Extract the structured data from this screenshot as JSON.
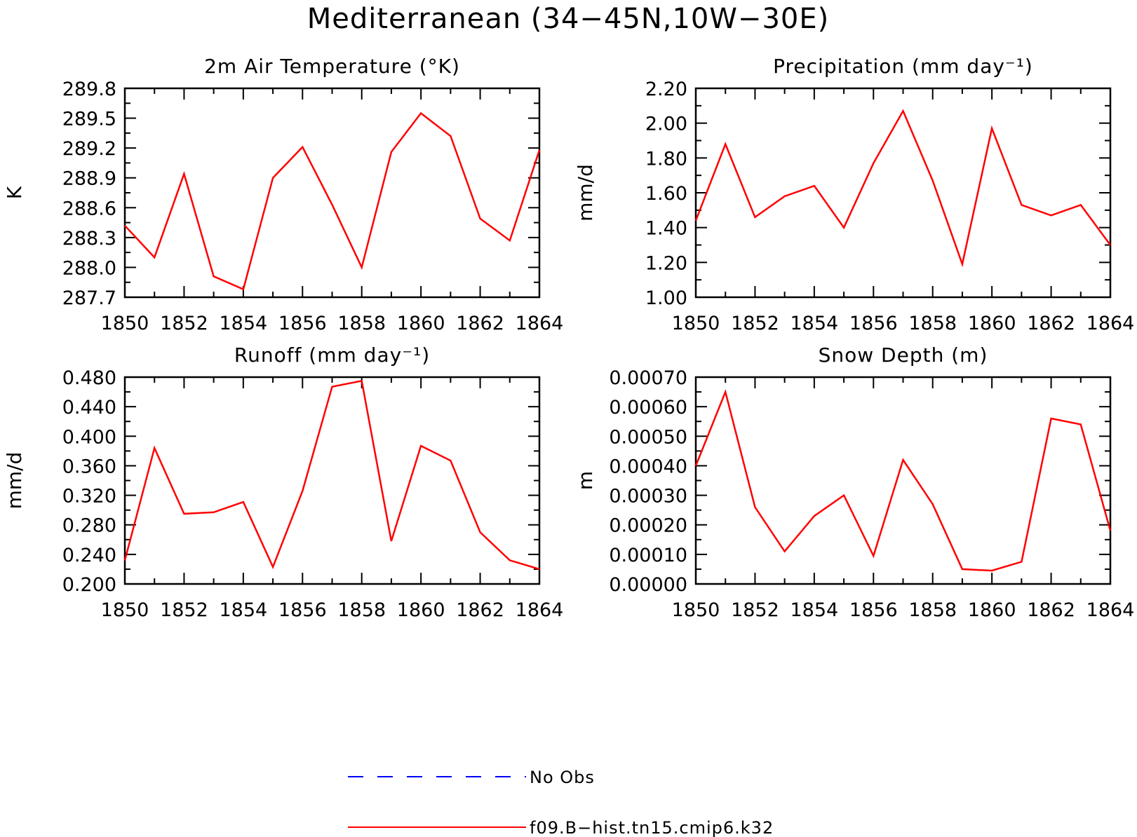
{
  "figure": {
    "title": "Mediterranean (34−45N,10W−30E)",
    "legend": [
      {
        "label": "No Obs",
        "color": "#0000ff",
        "style": "dashed"
      },
      {
        "label": "f09.B−hist.tn15.cmip6.k32",
        "color": "#ff0000",
        "style": "solid"
      }
    ]
  },
  "chart_data": [
    {
      "type": "line",
      "title": "2m Air Temperature (°K)",
      "xlabel": "",
      "ylabel": "K",
      "xlim": [
        1850,
        1864
      ],
      "ylim": [
        287.7,
        289.8
      ],
      "x_ticks": [
        "1850",
        "1852",
        "1854",
        "1856",
        "1858",
        "1860",
        "1862",
        "1864"
      ],
      "y_ticks": [
        "287.7",
        "288.0",
        "288.3",
        "288.6",
        "288.9",
        "289.2",
        "289.5",
        "289.8"
      ],
      "x": [
        1850,
        1851,
        1852,
        1853,
        1854,
        1855,
        1856,
        1857,
        1858,
        1859,
        1860,
        1861,
        1862,
        1863,
        1864
      ],
      "series": [
        {
          "name": "f09.B−hist.tn15.cmip6.k32",
          "color": "#ff0000",
          "values": [
            288.42,
            288.1,
            288.94,
            287.91,
            287.78,
            288.9,
            289.21,
            288.63,
            288.0,
            289.16,
            289.55,
            289.32,
            288.49,
            288.27,
            289.18
          ]
        }
      ]
    },
    {
      "type": "line",
      "title": "Precipitation (mm day⁻¹)",
      "xlabel": "",
      "ylabel": "mm/d",
      "xlim": [
        1850,
        1864
      ],
      "ylim": [
        1.0,
        2.2
      ],
      "x_ticks": [
        "1850",
        "1852",
        "1854",
        "1856",
        "1858",
        "1860",
        "1862",
        "1864"
      ],
      "y_ticks": [
        "1.00",
        "1.20",
        "1.40",
        "1.60",
        "1.80",
        "2.00",
        "2.20"
      ],
      "x": [
        1850,
        1851,
        1852,
        1853,
        1854,
        1855,
        1856,
        1857,
        1858,
        1859,
        1860,
        1861,
        1862,
        1863,
        1864
      ],
      "series": [
        {
          "name": "f09.B−hist.tn15.cmip6.k32",
          "color": "#ff0000",
          "values": [
            1.44,
            1.88,
            1.46,
            1.58,
            1.64,
            1.4,
            1.77,
            2.07,
            1.67,
            1.19,
            1.97,
            1.53,
            1.47,
            1.53,
            1.3
          ]
        }
      ]
    },
    {
      "type": "line",
      "title": "Runoff (mm day⁻¹)",
      "xlabel": "",
      "ylabel": "mm/d",
      "xlim": [
        1850,
        1864
      ],
      "ylim": [
        0.2,
        0.48
      ],
      "x_ticks": [
        "1850",
        "1852",
        "1854",
        "1856",
        "1858",
        "1860",
        "1862",
        "1864"
      ],
      "y_ticks": [
        "0.200",
        "0.240",
        "0.280",
        "0.320",
        "0.360",
        "0.400",
        "0.440",
        "0.480"
      ],
      "x": [
        1850,
        1851,
        1852,
        1853,
        1854,
        1855,
        1856,
        1857,
        1858,
        1859,
        1860,
        1861,
        1862,
        1863,
        1864
      ],
      "series": [
        {
          "name": "f09.B−hist.tn15.cmip6.k32",
          "color": "#ff0000",
          "values": [
            0.232,
            0.384,
            0.295,
            0.297,
            0.311,
            0.223,
            0.326,
            0.467,
            0.475,
            0.258,
            0.387,
            0.367,
            0.27,
            0.232,
            0.22
          ]
        }
      ]
    },
    {
      "type": "line",
      "title": "Snow Depth (m)",
      "xlabel": "",
      "ylabel": "m",
      "xlim": [
        1850,
        1864
      ],
      "ylim": [
        0.0,
        0.0007
      ],
      "x_ticks": [
        "1850",
        "1852",
        "1854",
        "1856",
        "1858",
        "1860",
        "1862",
        "1864"
      ],
      "y_ticks": [
        "0.00000",
        "0.00010",
        "0.00020",
        "0.00030",
        "0.00040",
        "0.00050",
        "0.00060",
        "0.00070"
      ],
      "x": [
        1850,
        1851,
        1852,
        1853,
        1854,
        1855,
        1856,
        1857,
        1858,
        1859,
        1860,
        1861,
        1862,
        1863,
        1864
      ],
      "series": [
        {
          "name": "f09.B−hist.tn15.cmip6.k32",
          "color": "#ff0000",
          "values": [
            0.0004,
            0.00065,
            0.00026,
            0.00011,
            0.00023,
            0.0003,
            9.5e-05,
            0.00042,
            0.00027,
            5e-05,
            4.5e-05,
            7.5e-05,
            0.00056,
            0.00054,
            0.00018
          ]
        }
      ]
    }
  ]
}
